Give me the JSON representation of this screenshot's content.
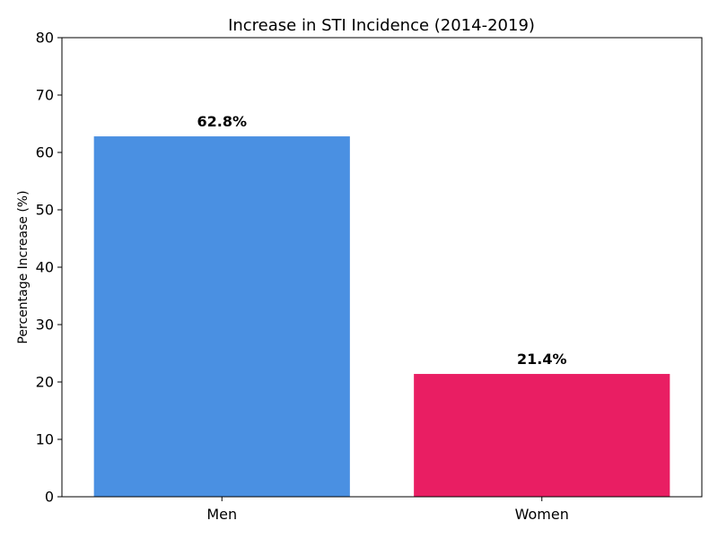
{
  "chart_data": {
    "type": "bar",
    "title": "Increase in STI Incidence (2014-2019)",
    "xlabel": "",
    "ylabel": "Percentage Increase (%)",
    "categories": [
      "Men",
      "Women"
    ],
    "values": [
      62.8,
      21.4
    ],
    "data_labels": [
      "62.8%",
      "21.4%"
    ],
    "colors": [
      "#4a90e2",
      "#e91e63"
    ],
    "ylim": [
      0,
      80
    ],
    "yticks": [
      0,
      10,
      20,
      30,
      40,
      50,
      60,
      70,
      80
    ],
    "grid": false,
    "legend": "none"
  }
}
